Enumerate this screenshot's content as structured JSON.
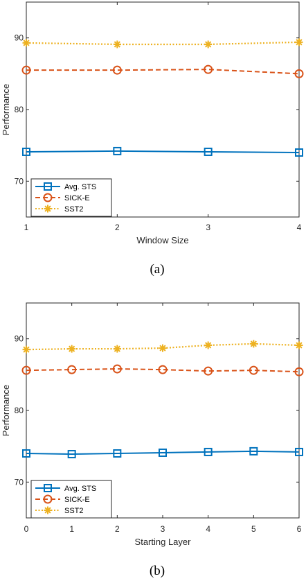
{
  "chart_data": [
    {
      "type": "line",
      "caption": "(a)",
      "xlabel": "Window Size",
      "ylabel": "Performance",
      "x": [
        1,
        2,
        3,
        4
      ],
      "xlim": [
        1,
        4
      ],
      "ylim": [
        65,
        95
      ],
      "yticks": [
        70,
        80,
        90
      ],
      "grid": false,
      "legend_position": "bottom-left",
      "series": [
        {
          "name": "Avg. STS",
          "values": [
            74.1,
            74.2,
            74.1,
            74.0
          ],
          "color": "#0072BD",
          "style": "solid",
          "marker": "square"
        },
        {
          "name": "SICK-E",
          "values": [
            85.5,
            85.5,
            85.6,
            85.0
          ],
          "color": "#D95319",
          "style": "dashed",
          "marker": "circle"
        },
        {
          "name": "SST2",
          "values": [
            89.3,
            89.1,
            89.1,
            89.4
          ],
          "color": "#EDB120",
          "style": "dotted",
          "marker": "asterisk"
        }
      ]
    },
    {
      "type": "line",
      "caption": "(b)",
      "xlabel": "Starting Layer",
      "ylabel": "Performance",
      "x": [
        0,
        1,
        2,
        3,
        4,
        5,
        6
      ],
      "xlim": [
        0,
        6
      ],
      "ylim": [
        65,
        95
      ],
      "yticks": [
        70,
        80,
        90
      ],
      "grid": false,
      "legend_position": "bottom-left",
      "series": [
        {
          "name": "Avg. STS",
          "values": [
            74.0,
            73.9,
            74.0,
            74.1,
            74.2,
            74.3,
            74.2
          ],
          "color": "#0072BD",
          "style": "solid",
          "marker": "square"
        },
        {
          "name": "SICK-E",
          "values": [
            85.6,
            85.7,
            85.8,
            85.7,
            85.5,
            85.6,
            85.4
          ],
          "color": "#D95319",
          "style": "dashed",
          "marker": "circle"
        },
        {
          "name": "SST2",
          "values": [
            88.5,
            88.6,
            88.6,
            88.7,
            89.1,
            89.3,
            89.1
          ],
          "color": "#EDB120",
          "style": "dotted",
          "marker": "asterisk"
        }
      ]
    }
  ]
}
